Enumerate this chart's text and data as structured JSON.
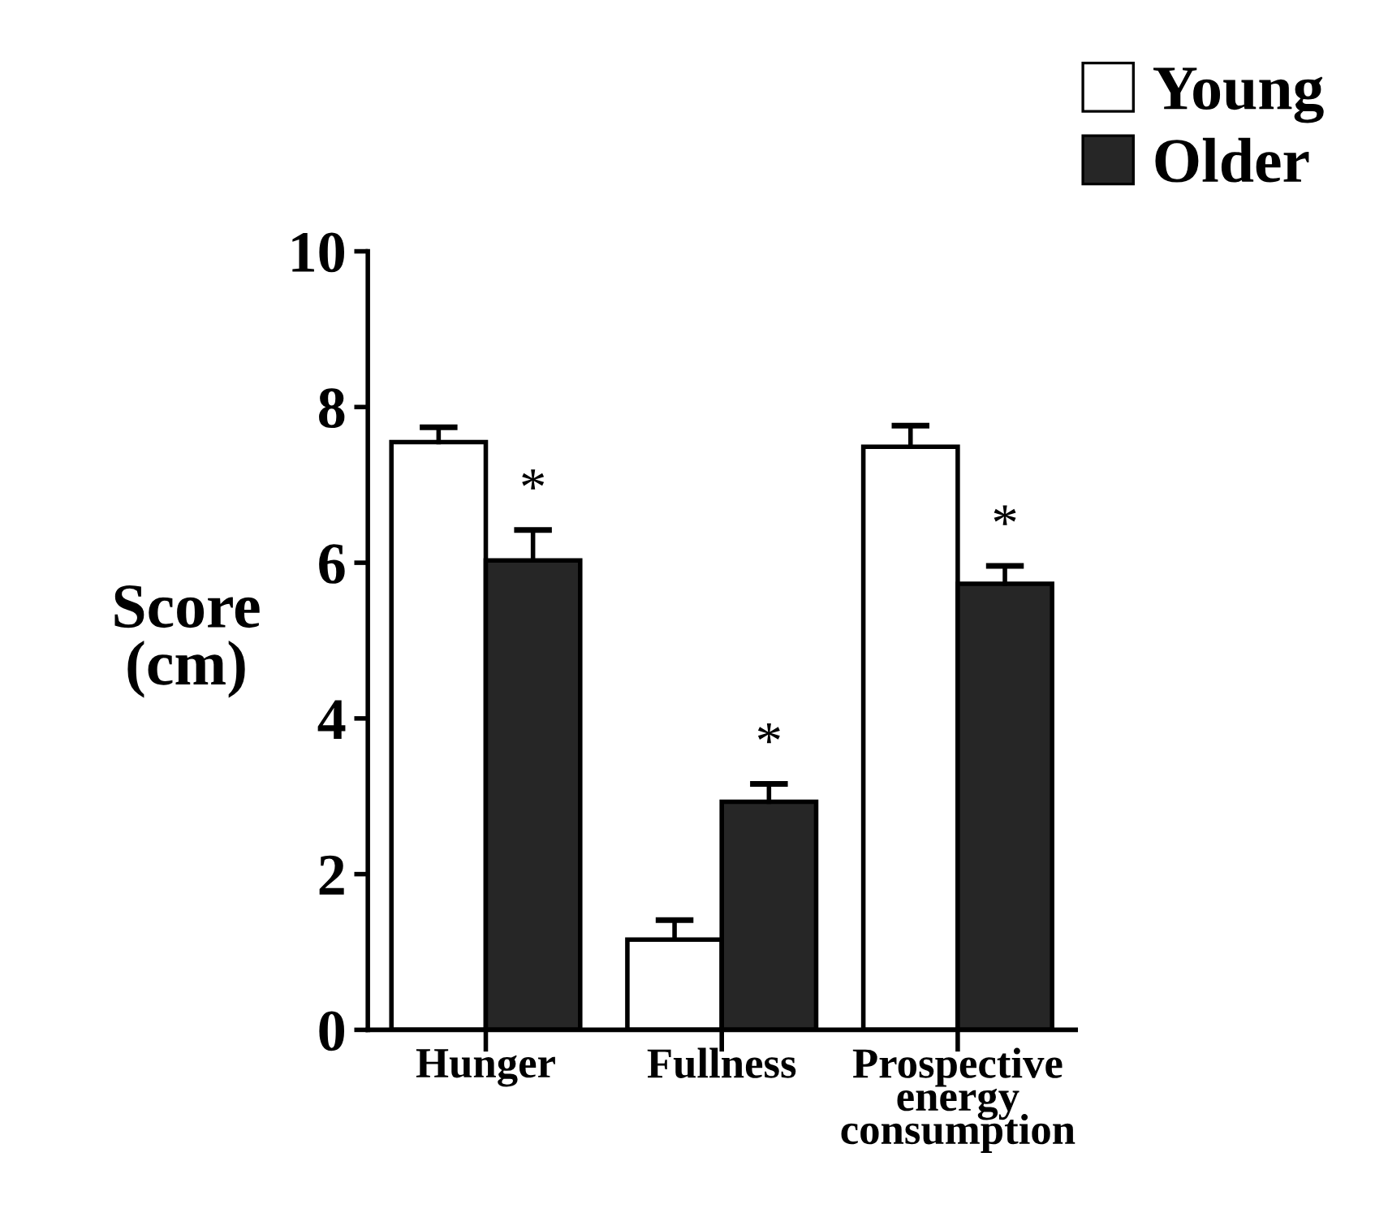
{
  "chart_data": {
    "type": "bar",
    "ylabel": "Score\n(cm)",
    "categories": [
      "Hunger",
      "Fullness",
      "Prospective\nenergy\nconsumption"
    ],
    "series": [
      {
        "name": "Young",
        "color": "#ffffff",
        "values": [
          7.55,
          1.16,
          7.49
        ],
        "errors": [
          [
            7.55,
            7.74
          ],
          [
            1.16,
            1.41
          ],
          [
            7.49,
            7.76
          ]
        ]
      },
      {
        "name": "Older",
        "color": "#262626",
        "values": [
          6.03,
          2.93,
          5.73
        ],
        "errors": [
          [
            6.03,
            6.42
          ],
          [
            2.93,
            3.16
          ],
          [
            5.73,
            5.96
          ]
        ]
      }
    ],
    "ylim": [
      0,
      10
    ],
    "yticks": [
      0,
      2,
      4,
      6,
      8,
      10
    ],
    "grid": false,
    "legend": "top right",
    "annotations": [
      "*",
      "*",
      "*"
    ]
  }
}
